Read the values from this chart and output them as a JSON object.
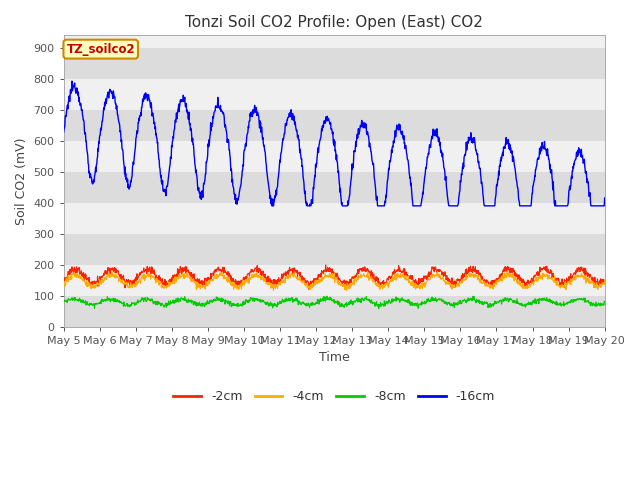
{
  "title": "Tonzi Soil CO2 Profile: Open (East) CO2",
  "ylabel": "Soil CO2 (mV)",
  "xlabel": "Time",
  "ylim": [
    0,
    940
  ],
  "yticks": [
    0,
    100,
    200,
    300,
    400,
    500,
    600,
    700,
    800,
    900
  ],
  "legend_label": "TZ_soilco2",
  "series_labels": [
    "-2cm",
    "-4cm",
    "-8cm",
    "-16cm"
  ],
  "series_colors": [
    "#ff2200",
    "#ffaa00",
    "#00cc00",
    "#0000ff"
  ],
  "background_color": "#ffffff",
  "plot_bg_light": "#f0f0f0",
  "plot_bg_dark": "#dcdcdc",
  "title_fontsize": 11,
  "axis_fontsize": 9,
  "tick_fontsize": 8,
  "n_points": 1440,
  "x_start_day": 5,
  "x_end_day": 20,
  "x_tick_days": [
    5,
    6,
    7,
    8,
    9,
    10,
    11,
    12,
    13,
    14,
    15,
    16,
    17,
    18,
    19,
    20
  ],
  "figsize": [
    6.4,
    4.8
  ],
  "dpi": 100
}
